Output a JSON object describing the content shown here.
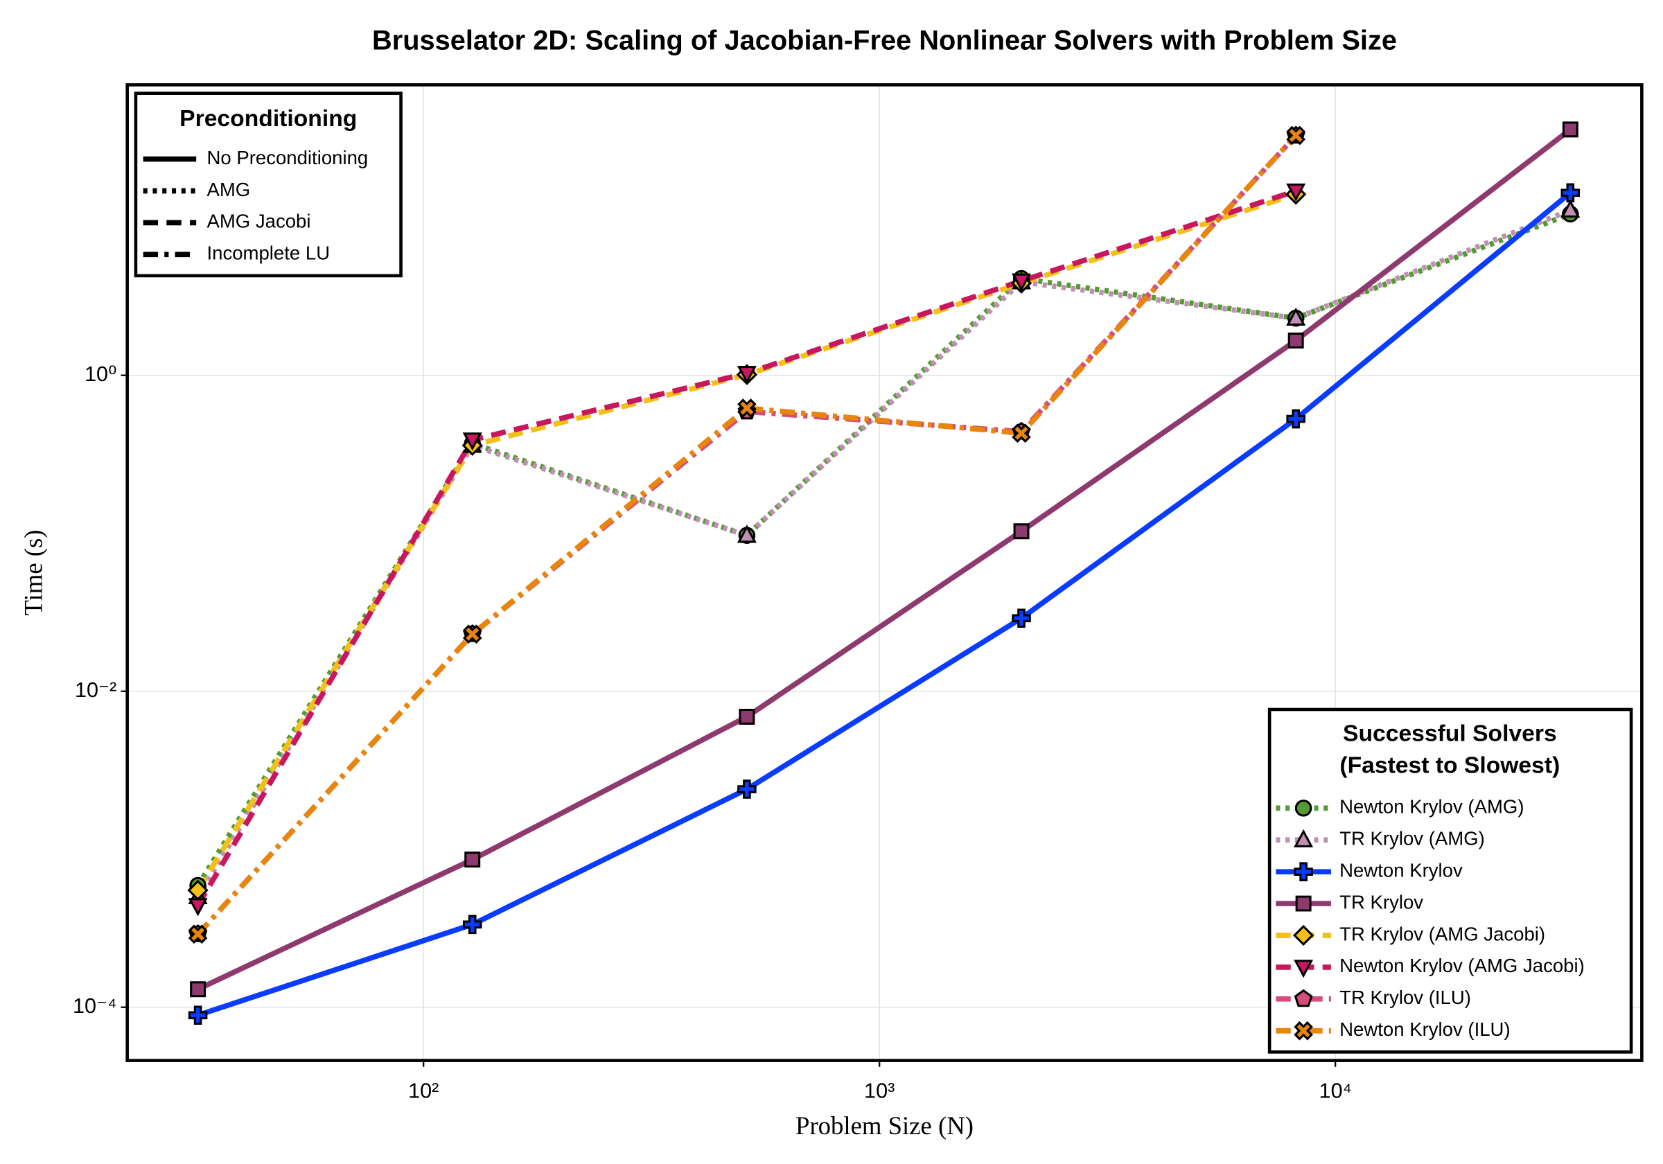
{
  "chart_data": {
    "type": "line",
    "title": "Brusselator 2D: Scaling of Jacobian-Free Nonlinear Solvers with Problem Size",
    "x_label": "Problem Size (N)",
    "y_label": "Time (s)",
    "x_scale": "log",
    "y_scale": "log",
    "grid": true,
    "x": [
      32,
      128,
      512,
      2048,
      8192,
      32768
    ],
    "xlim": [
      22.4,
      47000
    ],
    "ylim": [
      4.6e-05,
      69
    ],
    "xticks": [
      {
        "value": 100,
        "label": "10²"
      },
      {
        "value": 1000,
        "label": "10³"
      },
      {
        "value": 10000,
        "label": "10⁴"
      }
    ],
    "yticks": [
      {
        "value": 0.0001,
        "label": "10⁻⁴"
      },
      {
        "value": 0.01,
        "label": "10⁻²"
      },
      {
        "value": 1,
        "label": "10⁰"
      }
    ],
    "legend_position": "bottom-right",
    "legend_title": [
      "Successful Solvers",
      "(Fastest to Slowest)"
    ],
    "style_legend": {
      "position": "top-left",
      "title": "Preconditioning",
      "entries": [
        {
          "label": "No Preconditioning",
          "linestyle": "solid"
        },
        {
          "label": "AMG",
          "linestyle": "dot"
        },
        {
          "label": "AMG Jacobi",
          "linestyle": "dash"
        },
        {
          "label": "Incomplete LU",
          "linestyle": "dashdot"
        }
      ]
    },
    "series": [
      {
        "name": "Newton Krylov (AMG)",
        "color": "#559a33",
        "linestyle": "dot",
        "marker": "circle",
        "values": [
          0.00059,
          0.37,
          0.097,
          4.1,
          2.3,
          10.5
        ]
      },
      {
        "name": "TR Krylov (AMG)",
        "color": "#c08fb4",
        "linestyle": "dot",
        "marker": "utriangle",
        "values": [
          0.0005,
          0.36,
          0.097,
          3.9,
          2.3,
          11.1
        ]
      },
      {
        "name": "Newton Krylov",
        "color": "#0a3cff",
        "linestyle": "solid",
        "marker": "cross",
        "values": [
          8.9e-05,
          0.000334,
          0.0024,
          0.029,
          0.53,
          14.3
        ]
      },
      {
        "name": "TR Krylov",
        "color": "#8e3a6e",
        "linestyle": "solid",
        "marker": "rect",
        "values": [
          0.00013,
          0.00086,
          0.0069,
          0.103,
          1.66,
          36
        ]
      },
      {
        "name": "TR Krylov (AMG Jacobi)",
        "color": "#f2c018",
        "linestyle": "dash",
        "marker": "diamond",
        "values": [
          0.00055,
          0.36,
          1.01,
          3.83,
          14.0,
          null
        ]
      },
      {
        "name": "Newton Krylov (AMG Jacobi)",
        "color": "#c8175e",
        "linestyle": "dash",
        "marker": "dtriangle",
        "values": [
          0.00044,
          0.39,
          1.03,
          3.96,
          14.7,
          null
        ]
      },
      {
        "name": "TR Krylov (ILU)",
        "color": "#d64d79",
        "linestyle": "dashdot",
        "marker": "pentagon",
        "values": [
          0.00029,
          0.023,
          0.59,
          0.44,
          32.9,
          null
        ]
      },
      {
        "name": "Newton Krylov (ILU)",
        "color": "#e8850d",
        "linestyle": "dashdot",
        "marker": "xcross",
        "values": [
          0.00029,
          0.023,
          0.62,
          0.43,
          33,
          null
        ]
      }
    ]
  }
}
